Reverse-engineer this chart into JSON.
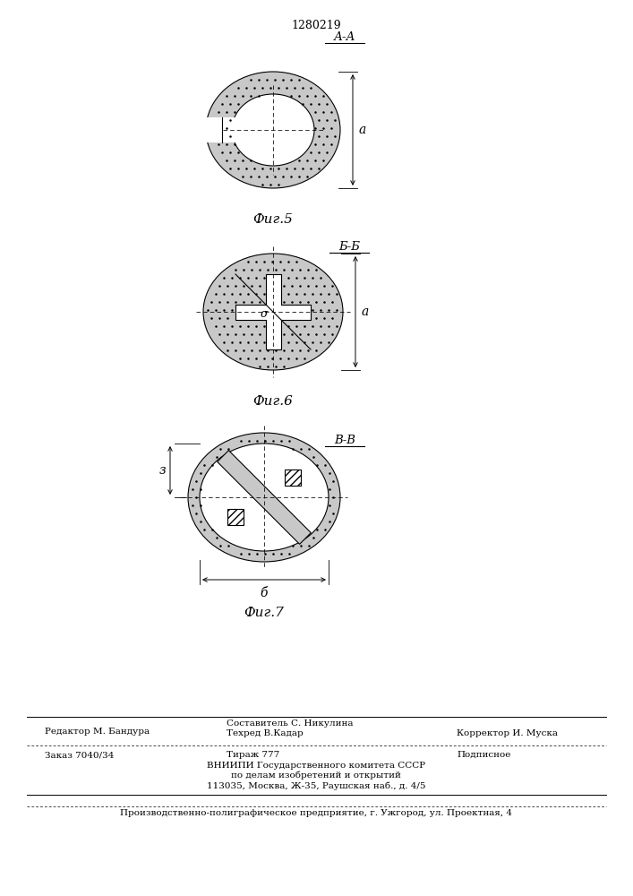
{
  "patent_number": "1280219",
  "fig5_label": "А-А",
  "fig6_label": "Б-Б",
  "fig7_label": "В-В",
  "caption5": "Фиг.5",
  "caption6": "Фиг.6",
  "caption7": "Фиг.7",
  "dim_label_a": "а",
  "dim_label_b": "б",
  "dim_label_z": "з",
  "dim_label_sigma": "σ",
  "footer_line1": "Составитель С. Никулина",
  "footer_editor": "Редактор М. Бандура",
  "footer_techred": "Техред В.Кадар",
  "footer_corrector": "Корректор И. Муска",
  "footer_order": "Заказ 7040/34",
  "footer_tirazh": "Тираж 777",
  "footer_podpisnoe": "Подписное",
  "footer_vnipi": "ВНИИПИ Государственного комитета СССР",
  "footer_vnipi2": "по делам изобретений и открытий",
  "footer_address": "113035, Москва, Ж-35, Раушская наб., д. 4/5",
  "footer_production": "Производственно-полиграфическое предприятие, г. Ужгород, ул. Проектная, 4",
  "bg_color": "#ffffff",
  "line_color": "#000000"
}
